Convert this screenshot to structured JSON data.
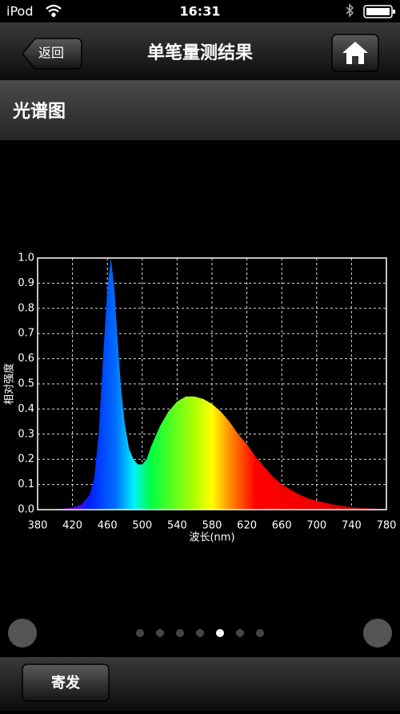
{
  "status_bar": {
    "carrier": "iPod",
    "time": "16:31"
  },
  "nav_bar": {
    "back_button": "返回",
    "title": "单笔量测结果"
  },
  "section": {
    "title": "光谱图"
  },
  "chart_data": {
    "type": "area",
    "xlabel": "波长(nm)",
    "ylabel": "相对强度",
    "x": [
      380,
      390,
      400,
      410,
      420,
      430,
      440,
      445,
      450,
      455,
      460,
      464,
      468,
      472,
      476,
      480,
      485,
      490,
      495,
      500,
      505,
      510,
      520,
      530,
      540,
      550,
      560,
      570,
      580,
      590,
      600,
      610,
      620,
      630,
      640,
      650,
      660,
      670,
      680,
      690,
      700,
      720,
      740,
      760,
      780
    ],
    "values": [
      0.0,
      0.0,
      0.002,
      0.004,
      0.008,
      0.02,
      0.06,
      0.13,
      0.3,
      0.6,
      0.88,
      1.0,
      0.88,
      0.66,
      0.47,
      0.34,
      0.24,
      0.2,
      0.18,
      0.18,
      0.2,
      0.25,
      0.33,
      0.39,
      0.43,
      0.45,
      0.45,
      0.44,
      0.42,
      0.39,
      0.35,
      0.3,
      0.26,
      0.21,
      0.17,
      0.13,
      0.1,
      0.08,
      0.06,
      0.045,
      0.035,
      0.02,
      0.01,
      0.005,
      0.002
    ],
    "xlim": [
      380,
      780
    ],
    "ylim": [
      0,
      1
    ],
    "xticks": [
      380,
      420,
      460,
      500,
      540,
      580,
      620,
      660,
      700,
      740,
      780
    ],
    "yticks": [
      {
        "value": 0,
        "label": "0.0"
      },
      0.1,
      0.2,
      0.3,
      0.4,
      0.5,
      0.6,
      0.7,
      0.8,
      0.9,
      {
        "value": 1,
        "label": "1.0"
      }
    ],
    "grid": true
  },
  "footer": {
    "button": "寄发"
  }
}
